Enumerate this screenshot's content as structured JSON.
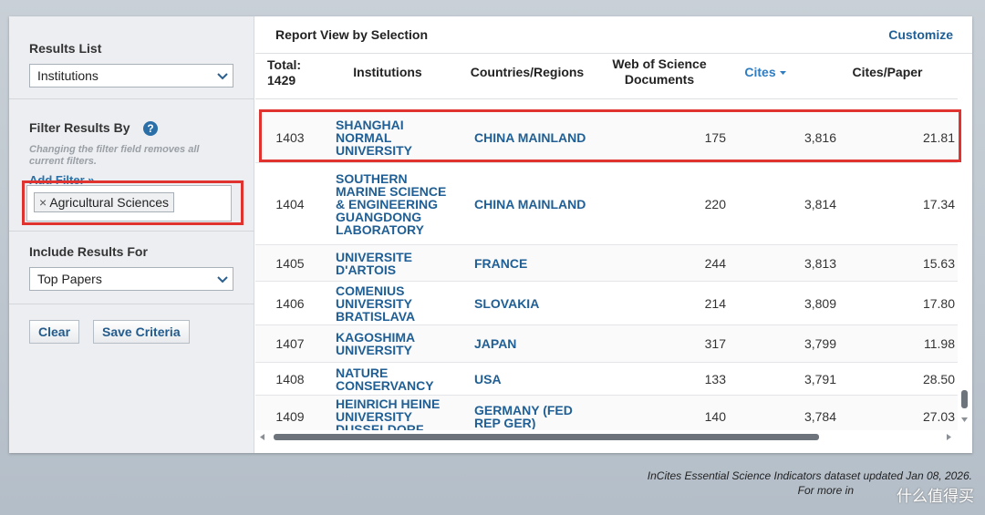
{
  "sidebar": {
    "results_list": {
      "label": "Results List",
      "selected": "Institutions"
    },
    "filter": {
      "label": "Filter Results By",
      "help": "?",
      "note": "Changing the filter field removes all current filters.",
      "add_filter": "Add Filter »",
      "tag_remove": "×",
      "tag": "Agricultural Sciences"
    },
    "include": {
      "label": "Include Results For",
      "selected": "Top Papers"
    },
    "buttons": [
      "Clear",
      "Save Criteria"
    ]
  },
  "report": {
    "title": "Report View by Selection",
    "customize": "Customize"
  },
  "table": {
    "total_label": "Total:",
    "total": "1429",
    "columns": [
      "Institutions",
      "Countries/Regions",
      "Web of Science Documents",
      "Cites",
      "Cites/Paper"
    ],
    "rows": [
      [
        "1403",
        "SHANGHAI NORMAL UNIVERSITY",
        "CHINA MAINLAND",
        "175",
        "3,816",
        "21.81"
      ],
      [
        "1404",
        "SOUTHERN MARINE SCIENCE & ENGINEERING GUANGDONG LABORATORY",
        "CHINA MAINLAND",
        "220",
        "3,814",
        "17.34"
      ],
      [
        "1405",
        "UNIVERSITE D'ARTOIS",
        "FRANCE",
        "244",
        "3,813",
        "15.63"
      ],
      [
        "1406",
        "COMENIUS UNIVERSITY BRATISLAVA",
        "SLOVAKIA",
        "214",
        "3,809",
        "17.80"
      ],
      [
        "1407",
        "KAGOSHIMA UNIVERSITY",
        "JAPAN",
        "317",
        "3,799",
        "11.98"
      ],
      [
        "1408",
        "NATURE CONSERVANCY",
        "USA",
        "133",
        "3,791",
        "28.50"
      ],
      [
        "1409",
        "HEINRICH HEINE UNIVERSITY DUSSELDORF",
        "GERMANY (FED REP GER)",
        "140",
        "3,784",
        "27.03"
      ]
    ]
  },
  "footer": {
    "updated": "InCites Essential Science Indicators dataset updated Jan 08, 2026.",
    "more": "For more in",
    "watermark": "什么值得买"
  }
}
